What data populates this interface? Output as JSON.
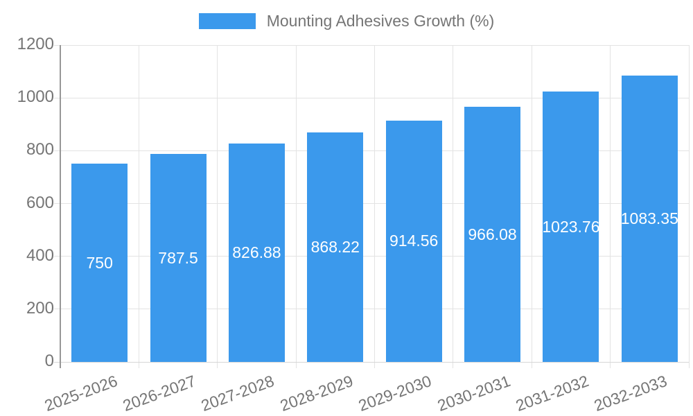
{
  "legend": {
    "label": "Mounting Adhesives Growth (%)"
  },
  "chart_data": {
    "type": "bar",
    "title": "Mounting Adhesives Growth (%)",
    "categories": [
      "2025-2026",
      "2026-2027",
      "2027-2028",
      "2028-2029",
      "2029-2030",
      "2030-2031",
      "2031-2032",
      "2032-2033"
    ],
    "values": [
      750,
      787.5,
      826.88,
      868.22,
      914.56,
      966.08,
      1023.76,
      1083.35
    ],
    "value_labels": [
      "750",
      "787.5",
      "826.88",
      "868.22",
      "914.56",
      "966.08",
      "1023.76",
      "1083.35"
    ],
    "xlabel": "",
    "ylabel": "",
    "ylim": [
      0,
      1200
    ],
    "yticks": [
      0,
      200,
      400,
      600,
      800,
      1000,
      1200
    ],
    "grid": true,
    "legend_position": "top",
    "colors": {
      "bar": "#3B99EC",
      "bar_value_text": "#ffffff",
      "axis_text": "#757575",
      "grid_line": "#e3e3e3",
      "y_axis_line": "#979797",
      "x_axis_line": "#d6d6d6",
      "background": "#ffffff"
    }
  }
}
